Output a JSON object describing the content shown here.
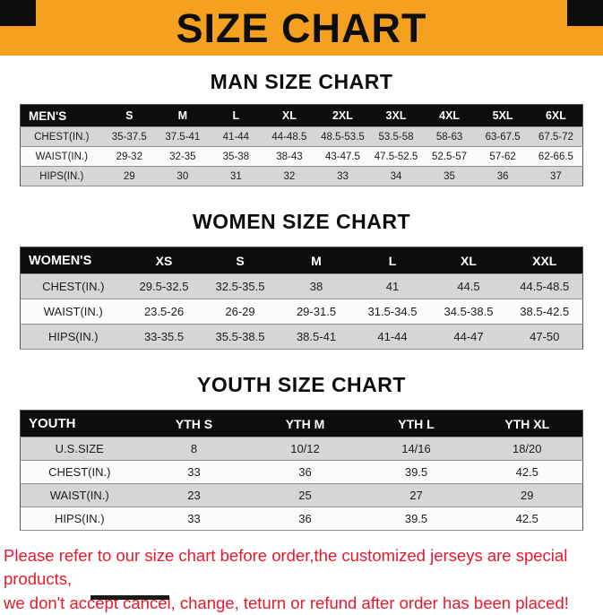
{
  "banner": {
    "title": "SIZE CHART",
    "bg_color": "#F5A01E",
    "text_color": "#0D0D0D"
  },
  "sections": [
    {
      "title": "MAN SIZE CHART",
      "table": {
        "header": [
          "MEN'S",
          "S",
          "M",
          "L",
          "XL",
          "2XL",
          "3XL",
          "4XL",
          "5XL",
          "6XL"
        ],
        "rows": [
          {
            "label": "CHEST(IN.)",
            "values": [
              "35-37.5",
              "37.5-41",
              "41-44",
              "44-48.5",
              "48.5-53.5",
              "53.5-58",
              "58-63",
              "63-67.5",
              "67.5-72"
            ]
          },
          {
            "label": "WAIST(IN.)",
            "values": [
              "29-32",
              "32-35",
              "35-38",
              "38-43",
              "43-47.5",
              "47.5-52.5",
              "52.5-57",
              "57-62",
              "62-66.5"
            ]
          },
          {
            "label": "HIPS(IN.)",
            "values": [
              "29",
              "30",
              "31",
              "32",
              "33",
              "34",
              "35",
              "36",
              "37"
            ]
          }
        ]
      }
    },
    {
      "title": "WOMEN SIZE CHART",
      "table": {
        "header": [
          "WOMEN'S",
          "XS",
          "S",
          "M",
          "L",
          "XL",
          "XXL"
        ],
        "rows": [
          {
            "label": "CHEST(IN.)",
            "values": [
              "29.5-32.5",
              "32.5-35.5",
              "38",
              "41",
              "44.5",
              "44.5-48.5"
            ]
          },
          {
            "label": "WAIST(IN.)",
            "values": [
              "23.5-26",
              "26-29",
              "29-31.5",
              "31.5-34.5",
              "34.5-38.5",
              "38.5-42.5"
            ]
          },
          {
            "label": "HIPS(IN.)",
            "values": [
              "33-35.5",
              "35.5-38.5",
              "38.5-41",
              "41-44",
              "44-47",
              "47-50"
            ]
          }
        ]
      }
    },
    {
      "title": "YOUTH SIZE CHART",
      "table": {
        "header": [
          "YOUTH",
          "YTH S",
          "YTH M",
          "YTH L",
          "YTH XL"
        ],
        "rows": [
          {
            "label": "U.S.SIZE",
            "values": [
              "8",
              "10/12",
              "14/16",
              "18/20"
            ]
          },
          {
            "label": "CHEST(IN.)",
            "values": [
              "33",
              "36",
              "39.5",
              "42.5"
            ]
          },
          {
            "label": "WAIST(IN.)",
            "values": [
              "23",
              "25",
              "27",
              "29"
            ]
          },
          {
            "label": "HIPS(IN.)",
            "values": [
              "33",
              "36",
              "39.5",
              "42.5"
            ]
          }
        ]
      }
    }
  ],
  "footer": {
    "color": "#E8192D",
    "lines": [
      "Please refer to our size chart before order,the customized jerseys are special products,",
      "we don't accept cancel, change, teturn or refund after order has been placed!"
    ]
  }
}
